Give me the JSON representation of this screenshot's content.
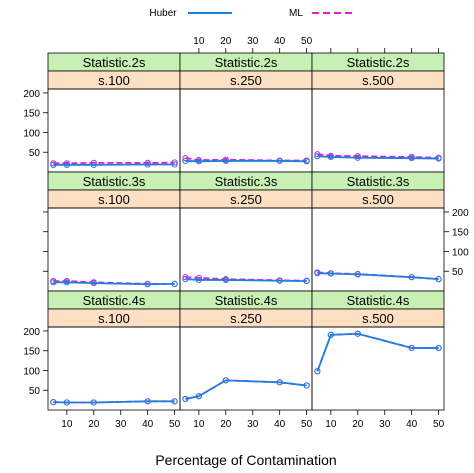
{
  "chart_data": {
    "type": "line",
    "xlabel": "Percentage of Contamination",
    "ylabel": "",
    "x_ticks": [
      10,
      20,
      30,
      40,
      50
    ],
    "y_ticks": [
      50,
      100,
      150,
      200
    ],
    "xlim": [
      3,
      52
    ],
    "ylim": [
      0,
      210
    ],
    "grid": false,
    "legend": {
      "placement": "top",
      "entries": [
        {
          "name": "Huber",
          "color": "#1f7fe0",
          "style": "solid"
        },
        {
          "name": "ML",
          "color": "#e21ad0",
          "style": "dashed"
        }
      ]
    },
    "strip_colors": {
      "statistic": "#c8f0b4",
      "sample": "#fde0c4"
    },
    "x": [
      5,
      10,
      20,
      40,
      50
    ],
    "panels": [
      {
        "statistic": "Statistic.2s",
        "sample": "s.100",
        "series": [
          {
            "name": "Huber",
            "values": [
              18,
              18,
              18,
              19,
              19
            ]
          },
          {
            "name": "ML",
            "values": [
              22,
              22,
              23,
              23,
              24
            ]
          }
        ]
      },
      {
        "statistic": "Statistic.2s",
        "sample": "s.250",
        "series": [
          {
            "name": "Huber",
            "values": [
              28,
              27,
              28,
              28,
              27
            ]
          },
          {
            "name": "ML",
            "values": [
              35,
              30,
              31,
              29,
              29
            ]
          }
        ]
      },
      {
        "statistic": "Statistic.2s",
        "sample": "s.500",
        "series": [
          {
            "name": "Huber",
            "values": [
              40,
              38,
              36,
              35,
              34
            ]
          },
          {
            "name": "ML",
            "values": [
              45,
              41,
              40,
              38,
              36
            ]
          }
        ]
      },
      {
        "statistic": "Statistic.3s",
        "sample": "s.100",
        "series": [
          {
            "name": "Huber",
            "values": [
              22,
              22,
              20,
              17,
              18
            ]
          },
          {
            "name": "ML",
            "values": [
              25,
              25,
              22,
              18,
              18
            ]
          }
        ]
      },
      {
        "statistic": "Statistic.3s",
        "sample": "s.250",
        "series": [
          {
            "name": "Huber",
            "values": [
              30,
              28,
              28,
              26,
              25
            ]
          },
          {
            "name": "ML",
            "values": [
              35,
              33,
              30,
              27,
              26
            ]
          }
        ]
      },
      {
        "statistic": "Statistic.3s",
        "sample": "s.500",
        "series": [
          {
            "name": "Huber",
            "values": [
              45,
              44,
              42,
              35,
              30
            ]
          },
          {
            "name": "ML",
            "values": [
              47,
              45,
              43,
              35,
              30
            ]
          }
        ]
      },
      {
        "statistic": "Statistic.4s",
        "sample": "s.100",
        "series": [
          {
            "name": "Huber",
            "values": [
              20,
              19,
              19,
              22,
              22
            ]
          },
          {
            "name": "ML",
            "values": [
              20,
              19,
              19,
              22,
              22
            ]
          }
        ]
      },
      {
        "statistic": "Statistic.4s",
        "sample": "s.250",
        "series": [
          {
            "name": "Huber",
            "values": [
              28,
              35,
              75,
              70,
              62
            ]
          },
          {
            "name": "ML",
            "values": [
              28,
              35,
              75,
              70,
              62
            ]
          }
        ]
      },
      {
        "statistic": "Statistic.4s",
        "sample": "s.500",
        "series": [
          {
            "name": "Huber",
            "values": [
              98,
              190,
              193,
              157,
              157
            ]
          },
          {
            "name": "ML",
            "values": [
              98,
              190,
              193,
              157,
              157
            ]
          }
        ]
      }
    ]
  }
}
